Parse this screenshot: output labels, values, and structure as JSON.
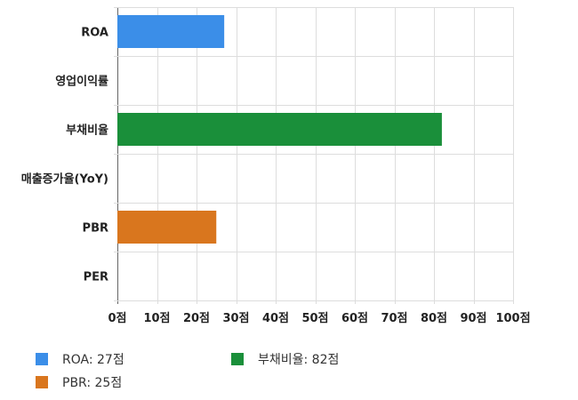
{
  "chart_data": {
    "type": "bar",
    "orientation": "horizontal",
    "categories": [
      "ROA",
      "영업이익률",
      "부채비율",
      "매출증가율(YoY)",
      "PBR",
      "PER"
    ],
    "values": [
      27,
      null,
      82,
      null,
      25,
      null
    ],
    "colors": [
      "#3b8ee8",
      null,
      "#1a8f3a",
      null,
      "#d9761e",
      null
    ],
    "xlim": [
      0,
      100
    ],
    "x_ticks": [
      "0점",
      "10점",
      "20점",
      "30점",
      "40점",
      "50점",
      "60점",
      "70점",
      "80점",
      "90점",
      "100점"
    ],
    "grid": true,
    "legend_position": "bottom"
  },
  "legend": [
    {
      "label": "ROA: 27점",
      "color": "#3b8ee8"
    },
    {
      "label": "부채비율: 82점",
      "color": "#1a8f3a"
    },
    {
      "label": "PBR: 25점",
      "color": "#d9761e"
    }
  ]
}
